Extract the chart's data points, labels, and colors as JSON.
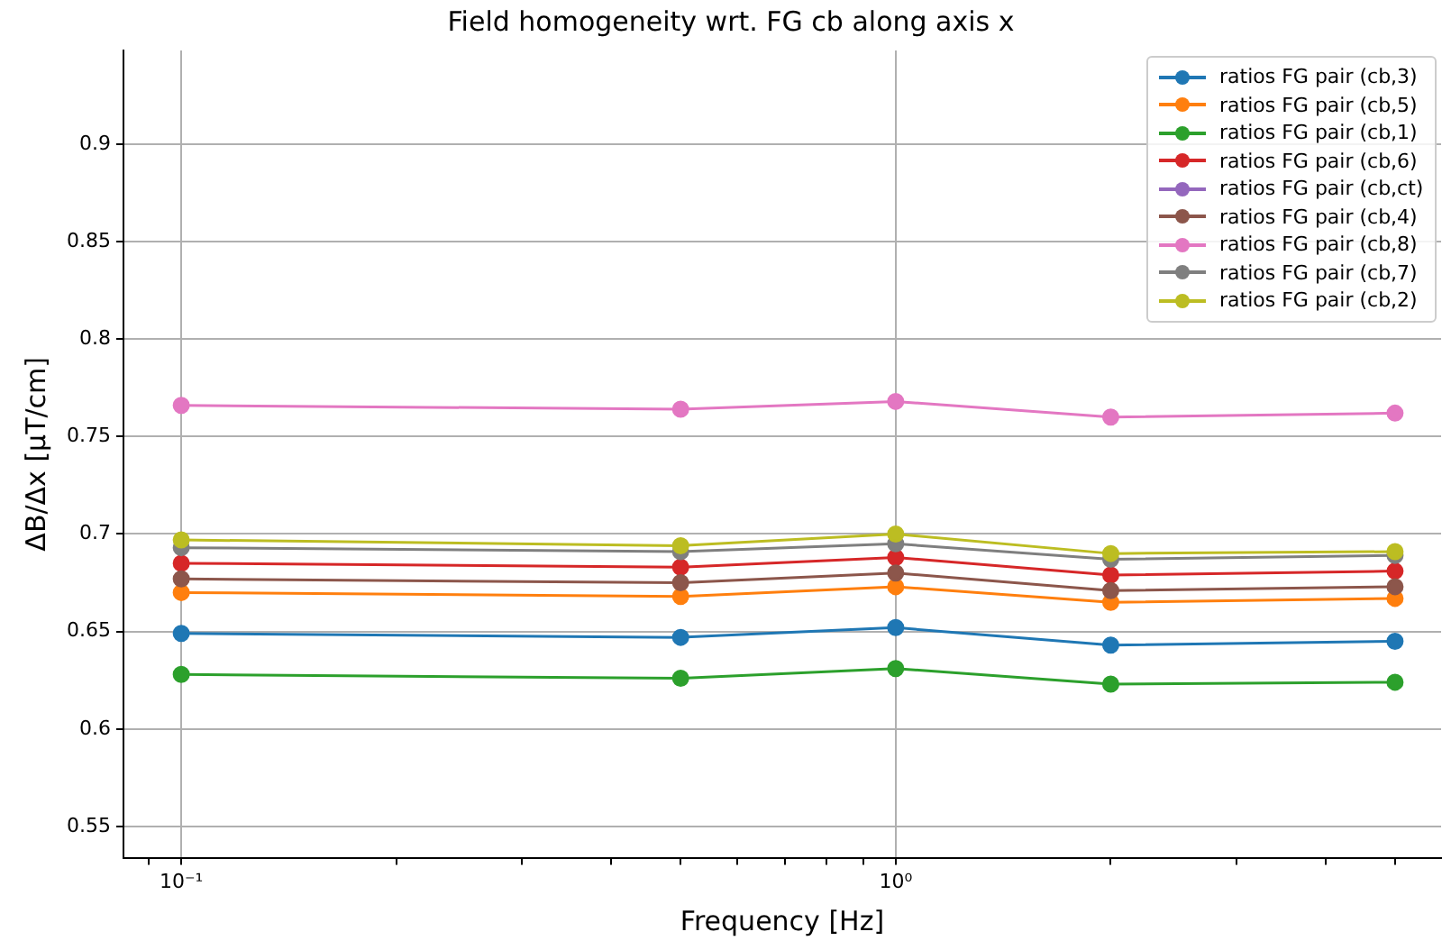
{
  "chart_data": {
    "type": "line",
    "title": "Field homogeneity wrt. FG cb along axis x",
    "xlabel": "Frequency [Hz]",
    "ylabel": "ΔB/Δx [μT/cm]",
    "x": [
      0.1,
      0.5,
      1,
      2,
      5
    ],
    "series": [
      {
        "name": "ratios FG pair (cb,3)",
        "color": "#1f77b4",
        "values": [
          0.649,
          0.647,
          0.652,
          0.643,
          0.645
        ]
      },
      {
        "name": "ratios FG pair (cb,5)",
        "color": "#ff7f0e",
        "values": [
          0.67,
          0.668,
          0.673,
          0.665,
          0.667
        ]
      },
      {
        "name": "ratios FG pair (cb,1)",
        "color": "#2ca02c",
        "values": [
          0.628,
          0.626,
          0.631,
          0.623,
          0.624
        ]
      },
      {
        "name": "ratios FG pair (cb,6)",
        "color": "#d62728",
        "values": [
          0.685,
          0.683,
          0.688,
          0.679,
          0.681
        ]
      },
      {
        "name": "ratios FG pair (cb,ct)",
        "color": "#9467bd",
        "values": [
          null,
          null,
          null,
          null,
          null
        ]
      },
      {
        "name": "ratios FG pair (cb,4)",
        "color": "#8c564b",
        "values": [
          0.677,
          0.675,
          0.68,
          0.671,
          0.673
        ]
      },
      {
        "name": "ratios FG pair (cb,8)",
        "color": "#e377c2",
        "values": [
          0.766,
          0.764,
          0.768,
          0.76,
          0.762
        ]
      },
      {
        "name": "ratios FG pair (cb,7)",
        "color": "#7f7f7f",
        "values": [
          0.693,
          0.691,
          0.695,
          0.687,
          0.689
        ]
      },
      {
        "name": "ratios FG pair (cb,2)",
        "color": "#bcbd22",
        "values": [
          0.697,
          0.694,
          0.7,
          0.69,
          0.691
        ]
      }
    ],
    "log": "x",
    "xlim": [
      0.083,
      5.8
    ],
    "xticks": [
      {
        "value": 0.09,
        "label": null
      },
      {
        "value": 0.1,
        "label": "10⁻¹"
      },
      {
        "value": 0.2,
        "label": null
      },
      {
        "value": 0.3,
        "label": null
      },
      {
        "value": 0.4,
        "label": null
      },
      {
        "value": 0.5,
        "label": null
      },
      {
        "value": 0.6,
        "label": null
      },
      {
        "value": 0.7,
        "label": null
      },
      {
        "value": 0.8,
        "label": null
      },
      {
        "value": 0.9,
        "label": null
      },
      {
        "value": 1,
        "label": "10⁰"
      },
      {
        "value": 2,
        "label": null
      },
      {
        "value": 3,
        "label": null
      },
      {
        "value": 4,
        "label": null
      },
      {
        "value": 5,
        "label": null
      }
    ],
    "ylim": [
      0.534,
      0.948
    ],
    "yticks": [
      0.55,
      0.6,
      0.65,
      0.7,
      0.75,
      0.8,
      0.85,
      0.9
    ],
    "grid": true,
    "legend": "top right",
    "marker": "circle",
    "line_style": "solid"
  }
}
